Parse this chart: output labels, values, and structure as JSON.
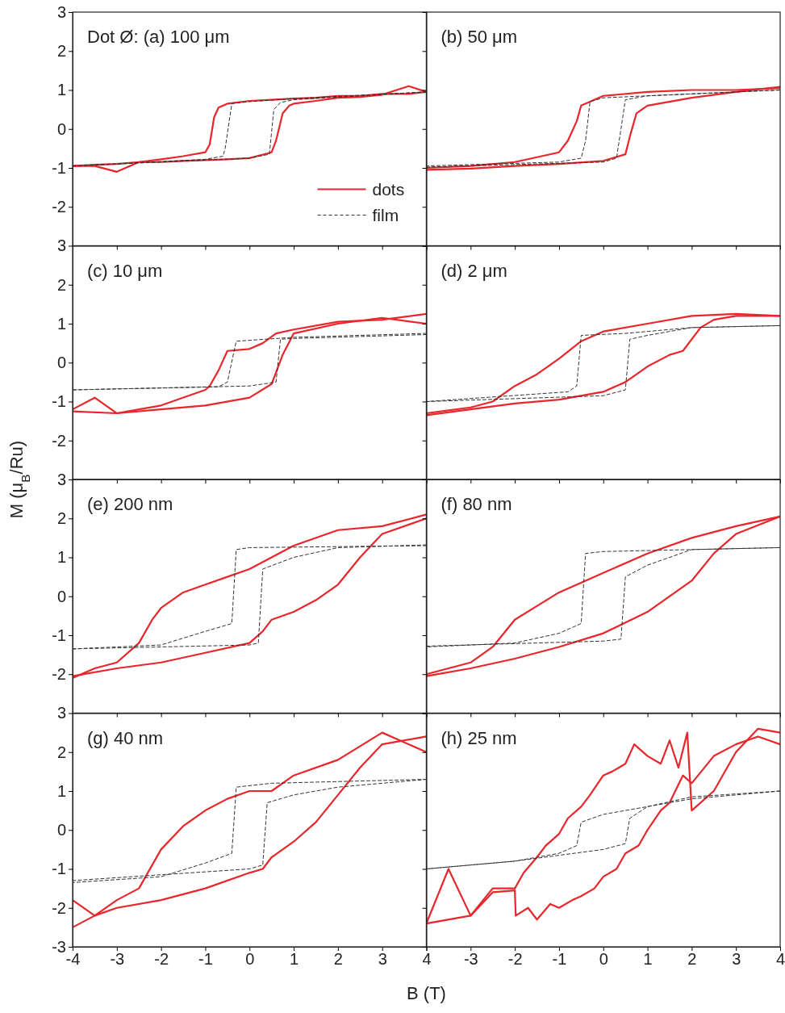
{
  "chart_data": [
    {
      "type": "line",
      "title": "Dot Ø: (a) 100 μm",
      "legend": "bottom right",
      "tick_labels": "y",
      "xlim": [
        -4,
        4
      ],
      "ylim": [
        -3,
        3
      ],
      "xticks": [
        -4,
        -3,
        -2,
        -1,
        0,
        1,
        2,
        3,
        4
      ],
      "yticks": [
        -2,
        -1,
        0,
        1,
        2,
        3
      ],
      "series": [
        {
          "name": "dots",
          "color": "#e8262b",
          "line_style": "solid",
          "x": [
            4,
            3.6,
            3,
            2.5,
            2,
            1.5,
            1,
            0.5,
            0,
            -0.5,
            -0.7,
            -0.8,
            -0.9,
            -1,
            -1.5,
            -2,
            -2.5,
            -3,
            -3.5,
            -4
          ],
          "values": [
            0.95,
            0.9,
            0.9,
            0.85,
            0.85,
            0.8,
            0.78,
            0.75,
            0.72,
            0.65,
            0.55,
            0.3,
            -0.4,
            -0.6,
            -0.7,
            -0.78,
            -0.85,
            -0.9,
            -0.92,
            -0.95
          ]
        },
        {
          "color": "#e8262b",
          "line_style": "solid",
          "x": [
            -4,
            -3.5,
            -3,
            -2.5,
            -2,
            -1.5,
            -1,
            -0.5,
            0,
            0.5,
            0.6,
            0.75,
            0.9,
            1,
            1.5,
            2,
            2.5,
            3,
            3.6,
            4
          ],
          "values": [
            -0.95,
            -0.95,
            -1.1,
            -0.85,
            -0.85,
            -0.82,
            -0.8,
            -0.78,
            -0.75,
            -0.6,
            -0.3,
            0.4,
            0.6,
            0.65,
            0.72,
            0.8,
            0.82,
            0.88,
            1.1,
            0.95
          ]
        },
        {
          "name": "film",
          "color": "#333333",
          "line_style": "dashed",
          "x": [
            4,
            1,
            0,
            -0.4,
            -0.55,
            -0.6,
            -1,
            -4
          ],
          "values": [
            0.95,
            0.78,
            0.7,
            0.65,
            -0.5,
            -0.7,
            -0.78,
            -0.95
          ]
        },
        {
          "color": "#333333",
          "line_style": "dashed",
          "x": [
            -4,
            0,
            0.45,
            0.55,
            0.7,
            1,
            4
          ],
          "values": [
            -0.95,
            -0.75,
            -0.65,
            0.5,
            0.68,
            0.75,
            0.95
          ]
        }
      ]
    },
    {
      "type": "line",
      "title": "(b) 50 μm",
      "tick_labels": false,
      "xlim": [
        -4,
        4
      ],
      "ylim": [
        -3,
        3
      ],
      "xticks": [
        -4,
        -3,
        -2,
        -1,
        0,
        1,
        2,
        3,
        4
      ],
      "yticks": [
        -3,
        -2,
        -1,
        0,
        1,
        2,
        3
      ],
      "series": [
        {
          "color": "#e8262b",
          "line_style": "solid",
          "x": [
            4,
            3,
            2,
            1,
            0,
            -0.5,
            -0.6,
            -0.8,
            -1,
            -2,
            -3,
            -4
          ],
          "values": [
            1.05,
            1.0,
            1.0,
            0.95,
            0.85,
            0.6,
            0.2,
            -0.3,
            -0.6,
            -0.85,
            -0.95,
            -1.0
          ]
        },
        {
          "color": "#e8262b",
          "line_style": "solid",
          "x": [
            -4,
            -3,
            -2,
            -1,
            0,
            0.5,
            0.6,
            0.75,
            1,
            2,
            3,
            4
          ],
          "values": [
            -1.05,
            -1.02,
            -0.95,
            -0.9,
            -0.82,
            -0.65,
            -0.2,
            0.4,
            0.6,
            0.8,
            0.95,
            1.08
          ]
        },
        {
          "color": "#333333",
          "line_style": "dashed",
          "x": [
            4,
            0,
            -0.3,
            -0.4,
            -0.5,
            -1,
            -4
          ],
          "values": [
            1.0,
            0.8,
            0.7,
            -0.3,
            -0.75,
            -0.85,
            -0.95
          ]
        },
        {
          "color": "#333333",
          "line_style": "dashed",
          "x": [
            -4,
            0,
            0.3,
            0.4,
            0.5,
            1,
            4
          ],
          "values": [
            -0.98,
            -0.85,
            -0.75,
            0,
            0.75,
            0.85,
            1.0
          ]
        }
      ]
    },
    {
      "type": "line",
      "title": "(c) 10 μm",
      "ylabel": "M (μ$_{B}$/Ru)",
      "tick_labels": "y",
      "xlim": [
        -4,
        4
      ],
      "ylim": [
        -3,
        3
      ],
      "xticks": [
        -4,
        -3,
        -2,
        -1,
        0,
        1,
        2,
        3,
        4
      ],
      "yticks": [
        -2,
        -1,
        0,
        1,
        2,
        3
      ],
      "series": [
        {
          "color": "#e8262b",
          "line_style": "solid",
          "x": [
            4,
            3,
            2,
            1,
            0.6,
            0.3,
            0,
            -0.5,
            -0.7,
            -0.9,
            -1,
            -2,
            -3,
            -3.5,
            -4
          ],
          "values": [
            1.25,
            1.1,
            1.05,
            0.85,
            0.75,
            0.5,
            0.35,
            0.3,
            -0.2,
            -0.6,
            -0.7,
            -1.1,
            -1.3,
            -0.9,
            -1.2
          ]
        },
        {
          "color": "#e8262b",
          "line_style": "solid",
          "x": [
            -4,
            -3,
            -2,
            -1,
            0,
            0.5,
            0.75,
            1,
            2,
            3,
            4
          ],
          "values": [
            -1.25,
            -1.3,
            -1.2,
            -1.1,
            -0.9,
            -0.55,
            0.2,
            0.75,
            1.0,
            1.15,
            1.0
          ]
        },
        {
          "color": "#333333",
          "line_style": "dashed",
          "x": [
            4,
            1,
            -0.3,
            -0.5,
            -0.7,
            -4
          ],
          "values": [
            0.75,
            0.65,
            0.55,
            -0.5,
            -0.62,
            -0.7
          ]
        },
        {
          "color": "#333333",
          "line_style": "dashed",
          "x": [
            -4,
            0,
            0.6,
            0.7,
            1,
            4
          ],
          "values": [
            -0.7,
            -0.6,
            -0.5,
            0.6,
            0.62,
            0.72
          ]
        }
      ]
    },
    {
      "type": "line",
      "title": "(d) 2 μm",
      "tick_labels": false,
      "xlim": [
        -4,
        4
      ],
      "ylim": [
        -3,
        3
      ],
      "xticks": [
        -4,
        -3,
        -2,
        -1,
        0,
        1,
        2,
        3,
        4
      ],
      "yticks": [
        -3,
        -2,
        -1,
        0,
        1,
        2,
        3
      ],
      "series": [
        {
          "color": "#e8262b",
          "line_style": "solid",
          "x": [
            4,
            3,
            2,
            1,
            0,
            -0.5,
            -1,
            -1.5,
            -2,
            -2.5,
            -3,
            -4
          ],
          "values": [
            1.2,
            1.25,
            1.2,
            1.0,
            0.8,
            0.55,
            0.1,
            -0.3,
            -0.6,
            -1.0,
            -1.15,
            -1.3
          ]
        },
        {
          "color": "#e8262b",
          "line_style": "solid",
          "x": [
            -4,
            -3,
            -2,
            -1,
            0,
            0.5,
            1,
            1.5,
            1.8,
            2.2,
            2.5,
            3,
            4
          ],
          "values": [
            -1.35,
            -1.2,
            -1.05,
            -0.95,
            -0.75,
            -0.5,
            -0.1,
            0.2,
            0.3,
            0.9,
            1.1,
            1.2,
            1.2
          ]
        },
        {
          "color": "#333333",
          "line_style": "dashed",
          "x": [
            4,
            2,
            0.5,
            -0.5,
            -0.6,
            -0.8,
            -4
          ],
          "values": [
            0.95,
            0.9,
            0.75,
            0.7,
            -0.6,
            -0.75,
            -1.0
          ]
        },
        {
          "color": "#333333",
          "line_style": "dashed",
          "x": [
            -4,
            0,
            0.5,
            0.6,
            1,
            2,
            4
          ],
          "values": [
            -1.0,
            -0.85,
            -0.7,
            0.6,
            0.7,
            0.9,
            0.95
          ]
        }
      ]
    },
    {
      "type": "line",
      "title": "(e) 200 nm",
      "tick_labels": "y",
      "xlim": [
        -4,
        4
      ],
      "ylim": [
        -3,
        3
      ],
      "xticks": [
        -4,
        -3,
        -2,
        -1,
        0,
        1,
        2,
        3,
        4
      ],
      "yticks": [
        -2,
        -1,
        0,
        1,
        2,
        3
      ],
      "series": [
        {
          "color": "#e8262b",
          "line_style": "solid",
          "x": [
            4,
            3,
            2,
            1,
            0,
            -0.5,
            -1,
            -1.5,
            -2,
            -2.2,
            -2.5,
            -3,
            -3.5,
            -4
          ],
          "values": [
            2.1,
            1.8,
            1.7,
            1.3,
            0.7,
            0.5,
            0.3,
            0.1,
            -0.3,
            -0.6,
            -1.2,
            -1.7,
            -1.85,
            -2.1
          ]
        },
        {
          "color": "#e8262b",
          "line_style": "solid",
          "x": [
            -4,
            -3,
            -2,
            -1,
            0,
            0.3,
            0.5,
            1,
            1.5,
            2,
            2.5,
            3,
            4
          ],
          "values": [
            -2.05,
            -1.85,
            -1.7,
            -1.45,
            -1.2,
            -0.9,
            -0.6,
            -0.4,
            -0.1,
            0.3,
            1.0,
            1.6,
            2.0
          ]
        },
        {
          "color": "#333333",
          "line_style": "dashed",
          "x": [
            4,
            0,
            -0.3,
            -0.4,
            -1,
            -2,
            -4
          ],
          "values": [
            1.3,
            1.25,
            1.2,
            -0.7,
            -0.9,
            -1.25,
            -1.35
          ]
        },
        {
          "color": "#333333",
          "line_style": "dashed",
          "x": [
            -4,
            0,
            0.2,
            0.3,
            1,
            2,
            4
          ],
          "values": [
            -1.35,
            -1.25,
            -1.2,
            0.7,
            1.0,
            1.25,
            1.32
          ]
        }
      ]
    },
    {
      "type": "line",
      "title": "(f) 80 nm",
      "tick_labels": false,
      "xlim": [
        -4,
        4
      ],
      "ylim": [
        -3,
        3
      ],
      "xticks": [
        -4,
        -3,
        -2,
        -1,
        0,
        1,
        2,
        3,
        4
      ],
      "yticks": [
        -3,
        -2,
        -1,
        0,
        1,
        2,
        3
      ],
      "series": [
        {
          "color": "#e8262b",
          "line_style": "solid",
          "x": [
            4,
            3,
            2,
            1,
            0,
            -1,
            -2,
            -2.5,
            -3,
            -4
          ],
          "values": [
            2.05,
            1.8,
            1.5,
            1.1,
            0.6,
            0.1,
            -0.6,
            -1.3,
            -1.7,
            -2.0
          ]
        },
        {
          "color": "#e8262b",
          "line_style": "solid",
          "x": [
            -4,
            -3,
            -2,
            -1,
            0,
            1,
            2,
            2.5,
            3,
            4
          ],
          "values": [
            -2.05,
            -1.85,
            -1.6,
            -1.3,
            -0.95,
            -0.4,
            0.4,
            1.1,
            1.6,
            2.05
          ]
        },
        {
          "color": "#333333",
          "line_style": "dashed",
          "x": [
            4,
            0,
            -0.4,
            -0.5,
            -1,
            -2,
            -4
          ],
          "values": [
            1.25,
            1.15,
            1.1,
            -0.7,
            -0.95,
            -1.2,
            -1.3
          ]
        },
        {
          "color": "#333333",
          "line_style": "dashed",
          "x": [
            -4,
            0,
            0.4,
            0.5,
            1,
            2,
            4
          ],
          "values": [
            -1.28,
            -1.15,
            -1.1,
            0.5,
            0.8,
            1.2,
            1.25
          ]
        }
      ]
    },
    {
      "type": "line",
      "title": "(g) 40 nm",
      "xlabel": "B (T)",
      "xlim": [
        -4,
        4
      ],
      "ylim": [
        -3,
        3
      ],
      "xticks": [
        -4,
        -3,
        -2,
        -1,
        0,
        1,
        2,
        3,
        4
      ],
      "yticks": [
        -3,
        -2,
        -1,
        0,
        1,
        2,
        3
      ],
      "series": [
        {
          "color": "#e8262b",
          "line_style": "solid",
          "x": [
            4,
            3,
            2,
            1,
            0.5,
            0,
            -0.5,
            -1,
            -1.5,
            -2,
            -2.5,
            -3,
            -3.5,
            -4
          ],
          "values": [
            2.0,
            2.5,
            1.8,
            1.4,
            1.0,
            1.0,
            0.8,
            0.5,
            0.1,
            -0.5,
            -1.5,
            -1.8,
            -2.2,
            -2.5
          ]
        },
        {
          "color": "#e8262b",
          "line_style": "solid",
          "x": [
            -4,
            -3.5,
            -3,
            -2,
            -1,
            0,
            0.3,
            0.5,
            1,
            1.5,
            2,
            2.5,
            3,
            4
          ],
          "values": [
            -1.8,
            -2.2,
            -2.0,
            -1.8,
            -1.5,
            -1.1,
            -1.0,
            -0.7,
            -0.3,
            0.2,
            0.9,
            1.6,
            2.2,
            2.4
          ]
        },
        {
          "color": "#333333",
          "line_style": "dashed",
          "x": [
            4,
            0.5,
            -0.3,
            -0.4,
            -1,
            -2,
            -4
          ],
          "values": [
            1.3,
            1.2,
            1.1,
            -0.6,
            -0.85,
            -1.2,
            -1.35
          ]
        },
        {
          "color": "#333333",
          "line_style": "dashed",
          "x": [
            -4,
            0,
            0.3,
            0.4,
            1,
            2,
            4
          ],
          "values": [
            -1.3,
            -1.0,
            -0.9,
            0.7,
            0.9,
            1.1,
            1.3
          ]
        }
      ]
    },
    {
      "type": "line",
      "title": "(h) 25 nm",
      "tick_labels": "x",
      "xlim": [
        -4,
        4
      ],
      "ylim": [
        -3,
        3
      ],
      "xticks": [
        {
          "value": -4,
          "label": null
        },
        -3,
        -2,
        -1,
        0,
        1,
        2,
        3,
        4
      ],
      "yticks": [
        -3,
        -2,
        -1,
        0,
        1,
        2,
        3
      ],
      "series": [
        {
          "color": "#e8262b",
          "line_style": "solid",
          "x": [
            4,
            3.5,
            3,
            2.5,
            2,
            1.9,
            1.7,
            1.5,
            1.3,
            1,
            0.7,
            0.5,
            0.2,
            0,
            -0.3,
            -0.5,
            -0.8,
            -1,
            -1.3,
            -1.5,
            -1.8,
            -2,
            -2.5,
            -3,
            -3.5,
            -4
          ],
          "values": [
            2.5,
            2.6,
            2.0,
            1.0,
            0.5,
            2.5,
            1.6,
            2.3,
            1.7,
            1.9,
            2.2,
            1.7,
            1.5,
            1.4,
            0.9,
            0.6,
            0.3,
            -0.1,
            -0.4,
            -0.7,
            -1.1,
            -1.5,
            -1.5,
            -2.2,
            -1.0,
            -2.4
          ]
        },
        {
          "color": "#e8262b",
          "line_style": "solid",
          "x": [
            -4,
            -3,
            -2.5,
            -2,
            -1.98,
            -1.7,
            -1.5,
            -1.2,
            -1,
            -0.7,
            -0.5,
            -0.2,
            0,
            0.3,
            0.5,
            0.8,
            1,
            1.3,
            1.5,
            1.8,
            2,
            2.5,
            3,
            3.5,
            4
          ],
          "values": [
            -2.4,
            -2.2,
            -1.6,
            -1.55,
            -2.2,
            -2.0,
            -2.3,
            -1.9,
            -2.0,
            -1.8,
            -1.7,
            -1.5,
            -1.2,
            -1.0,
            -0.6,
            -0.4,
            0,
            0.5,
            0.7,
            1.4,
            1.2,
            1.9,
            2.2,
            2.4,
            2.2
          ]
        },
        {
          "color": "#333333",
          "line_style": "dashed",
          "x": [
            4,
            2,
            0,
            -0.5,
            -0.6,
            -1,
            -2,
            -4
          ],
          "values": [
            1.0,
            0.8,
            0.4,
            0.2,
            -0.4,
            -0.6,
            -0.8,
            -1.0
          ]
        },
        {
          "color": "#333333",
          "line_style": "dashed",
          "x": [
            -4,
            -2,
            0,
            0.5,
            0.6,
            1,
            2,
            4
          ],
          "values": [
            -1.0,
            -0.8,
            -0.5,
            -0.35,
            0.3,
            0.6,
            0.85,
            1.0
          ]
        }
      ]
    }
  ]
}
